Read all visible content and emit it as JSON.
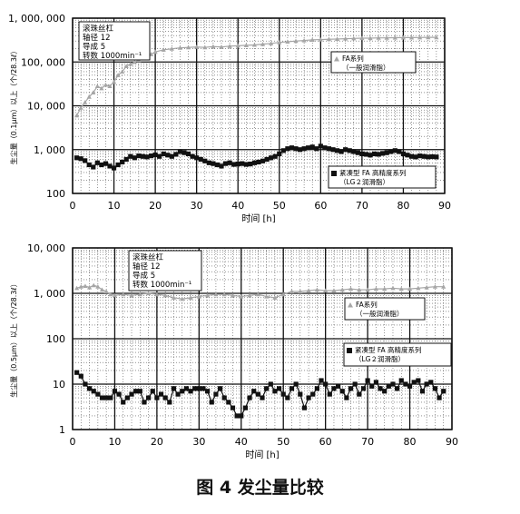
{
  "caption": "图 4 发尘量比较",
  "chart_data": [
    {
      "type": "line",
      "scale": "log",
      "ylabel": "生尘量（0.1μm）以上（个/28.3ℓ）",
      "xlabel": "时间 [h]",
      "xlim": [
        0,
        90
      ],
      "ylim": [
        100,
        1000000
      ],
      "x_ticks": [
        "0",
        "10",
        "20",
        "30",
        "40",
        "50",
        "60",
        "70",
        "80",
        "90"
      ],
      "y_ticks": [
        {
          "value": 100,
          "label": "100"
        },
        {
          "value": 1000,
          "label": "1, 000"
        },
        {
          "value": 10000,
          "label": "10, 000"
        },
        {
          "value": 100000,
          "label": "100, 000"
        },
        {
          "value": 1000000,
          "label": "1, 000, 000"
        }
      ],
      "grid": true,
      "info_box": [
        "滚珠丝杠",
        "轴径 12",
        "导成 5",
        "转数 1000min⁻¹"
      ],
      "series": [
        {
          "name": "FA系列",
          "note": "（一般润滑脂）",
          "marker": "triangle",
          "color": "#a6a6a6",
          "x": [
            1,
            2,
            3,
            4,
            5,
            6,
            7,
            8,
            9,
            10,
            11,
            12,
            13,
            14,
            15,
            16,
            17,
            18,
            19,
            20,
            22,
            24,
            26,
            28,
            30,
            32,
            34,
            36,
            38,
            40,
            42,
            44,
            46,
            48,
            50,
            52,
            54,
            56,
            58,
            60,
            62,
            64,
            66,
            68,
            70,
            72,
            74,
            76,
            78,
            80,
            82,
            84,
            86,
            88
          ],
          "values": [
            6000,
            9000,
            12000,
            16000,
            20000,
            28000,
            25000,
            30000,
            28000,
            35000,
            50000,
            60000,
            80000,
            90000,
            100000,
            110000,
            120000,
            135000,
            150000,
            170000,
            190000,
            200000,
            210000,
            215000,
            220000,
            215000,
            225000,
            220000,
            230000,
            235000,
            240000,
            245000,
            255000,
            265000,
            280000,
            290000,
            300000,
            310000,
            320000,
            325000,
            330000,
            335000,
            340000,
            345000,
            350000,
            350000,
            355000,
            355000,
            358000,
            360000,
            360000,
            362000,
            365000,
            365000
          ]
        },
        {
          "name": "紧凑型 FA 高精度系列",
          "note": "（LG２润滑脂）",
          "marker": "square",
          "color": "#111111",
          "x": [
            1,
            2,
            3,
            4,
            5,
            6,
            7,
            8,
            9,
            10,
            11,
            12,
            13,
            14,
            15,
            16,
            17,
            18,
            19,
            20,
            21,
            22,
            23,
            24,
            25,
            26,
            27,
            28,
            29,
            30,
            31,
            32,
            33,
            34,
            35,
            36,
            37,
            38,
            39,
            40,
            41,
            42,
            43,
            44,
            45,
            46,
            47,
            48,
            49,
            50,
            51,
            52,
            53,
            54,
            55,
            56,
            57,
            58,
            59,
            60,
            61,
            62,
            63,
            64,
            65,
            66,
            67,
            68,
            69,
            70,
            71,
            72,
            73,
            74,
            75,
            76,
            77,
            78,
            79,
            80,
            81,
            82,
            83,
            84,
            85,
            86,
            87,
            88
          ],
          "values": [
            650,
            620,
            560,
            450,
            400,
            500,
            450,
            480,
            420,
            380,
            450,
            520,
            600,
            700,
            650,
            720,
            700,
            680,
            720,
            760,
            700,
            800,
            750,
            700,
            780,
            900,
            850,
            800,
            700,
            650,
            600,
            550,
            500,
            480,
            450,
            420,
            480,
            500,
            460,
            470,
            480,
            460,
            470,
            500,
            520,
            550,
            600,
            650,
            700,
            800,
            950,
            1050,
            1100,
            1050,
            1000,
            1050,
            1100,
            1150,
            1050,
            1200,
            1100,
            1050,
            1000,
            950,
            900,
            1000,
            950,
            900,
            850,
            800,
            780,
            750,
            800,
            780,
            820,
            850,
            900,
            950,
            900,
            800,
            750,
            700,
            680,
            720,
            700,
            680,
            690,
            680
          ]
        }
      ]
    },
    {
      "type": "line",
      "scale": "log",
      "ylabel": "生尘量（0.5μm）以上（个/28.3ℓ）",
      "xlabel": "时间 [h]",
      "xlim": [
        0,
        90
      ],
      "ylim": [
        1,
        10000
      ],
      "x_ticks": [
        "0",
        "10",
        "20",
        "30",
        "40",
        "50",
        "60",
        "70",
        "80",
        "90"
      ],
      "y_ticks": [
        {
          "value": 1,
          "label": "1"
        },
        {
          "value": 10,
          "label": "10"
        },
        {
          "value": 100,
          "label": "100"
        },
        {
          "value": 1000,
          "label": "1, 000"
        },
        {
          "value": 10000,
          "label": "10, 000"
        }
      ],
      "grid": true,
      "info_box": [
        "滚珠丝杠",
        "轴径 12",
        "导成 5",
        "转数 1000min⁻¹"
      ],
      "series": [
        {
          "name": "FA系列",
          "note": "（一般润滑脂）",
          "marker": "triangle",
          "color": "#a6a6a6",
          "x": [
            1,
            2,
            3,
            4,
            5,
            6,
            7,
            8,
            9,
            10,
            12,
            14,
            16,
            18,
            20,
            22,
            24,
            26,
            28,
            30,
            32,
            34,
            36,
            38,
            40,
            42,
            44,
            46,
            48,
            50,
            52,
            54,
            56,
            58,
            60,
            62,
            64,
            66,
            68,
            70,
            72,
            74,
            76,
            78,
            80,
            82,
            84,
            86,
            88
          ],
          "values": [
            1300,
            1400,
            1450,
            1350,
            1500,
            1400,
            1200,
            1100,
            950,
            900,
            950,
            900,
            950,
            1000,
            950,
            900,
            800,
            750,
            800,
            850,
            900,
            950,
            950,
            900,
            850,
            900,
            950,
            850,
            800,
            950,
            1100,
            1100,
            1150,
            1200,
            1150,
            1150,
            1200,
            1250,
            1200,
            1200,
            1250,
            1250,
            1300,
            1250,
            1250,
            1300,
            1350,
            1400,
            1400
          ]
        },
        {
          "name": "紧凑型 FA 高精度系列",
          "note": "（LG２润滑脂）",
          "marker": "square",
          "color": "#111111",
          "x": [
            1,
            2,
            3,
            4,
            5,
            6,
            7,
            8,
            9,
            10,
            11,
            12,
            13,
            14,
            15,
            16,
            17,
            18,
            19,
            20,
            21,
            22,
            23,
            24,
            25,
            26,
            27,
            28,
            29,
            30,
            31,
            32,
            33,
            34,
            35,
            36,
            37,
            38,
            39,
            40,
            41,
            42,
            43,
            44,
            45,
            46,
            47,
            48,
            49,
            50,
            51,
            52,
            53,
            54,
            55,
            56,
            57,
            58,
            59,
            60,
            61,
            62,
            63,
            64,
            65,
            66,
            67,
            68,
            69,
            70,
            71,
            72,
            73,
            74,
            75,
            76,
            77,
            78,
            79,
            80,
            81,
            82,
            83,
            84,
            85,
            86,
            87,
            88
          ],
          "values": [
            18,
            15,
            10,
            8,
            7,
            6,
            5,
            5,
            5,
            7,
            6,
            4,
            5,
            6,
            7,
            7,
            4,
            5,
            7,
            5,
            6,
            5,
            4,
            8,
            6,
            7,
            8,
            7,
            8,
            8,
            8,
            7,
            4,
            6,
            8,
            5,
            4,
            3,
            2,
            2,
            3,
            5,
            7,
            6,
            5,
            8,
            10,
            7,
            8,
            6,
            5,
            8,
            10,
            6,
            3,
            5,
            6,
            8,
            12,
            10,
            6,
            8,
            9,
            7,
            5,
            8,
            10,
            6,
            8,
            12,
            9,
            11,
            8,
            7,
            9,
            10,
            8,
            12,
            10,
            9,
            11,
            12,
            7,
            10,
            11,
            8,
            5,
            7
          ]
        }
      ]
    }
  ]
}
